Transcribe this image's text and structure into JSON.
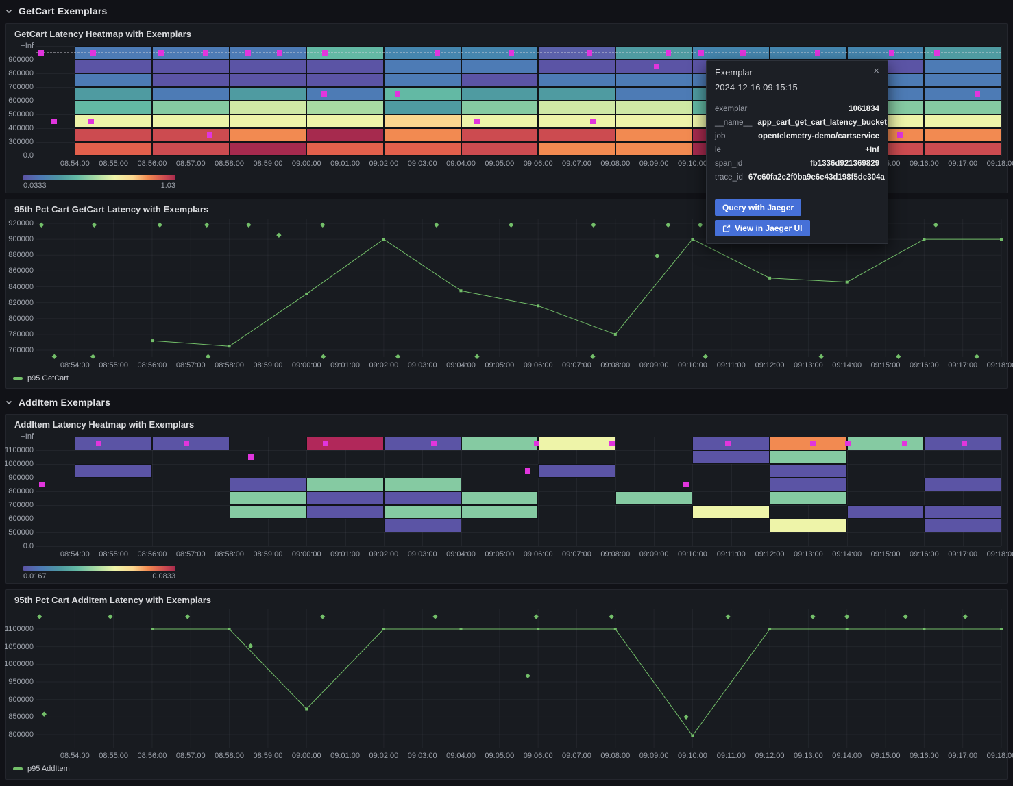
{
  "sections": [
    {
      "title": "GetCart Exemplars"
    },
    {
      "title": "AddItem Exemplars"
    }
  ],
  "time_axis": {
    "start": "08:53:00",
    "span_minutes": 25,
    "labels": [
      "08:54:00",
      "08:55:00",
      "08:56:00",
      "08:57:00",
      "08:58:00",
      "08:59:00",
      "09:00:00",
      "09:01:00",
      "09:02:00",
      "09:03:00",
      "09:04:00",
      "09:05:00",
      "09:06:00",
      "09:07:00",
      "09:08:00",
      "09:09:00",
      "09:10:00",
      "09:11:00",
      "09:12:00",
      "09:13:00",
      "09:14:00",
      "09:15:00",
      "09:16:00",
      "09:17:00",
      "09:18:00"
    ]
  },
  "palette": {
    "B": "#4d7bb5",
    "S": "#4586ae",
    "PB": "#5b61aa",
    "P": "#5b54a5",
    "T": "#4f9ba1",
    "SG": "#63b9a4",
    "G": "#85caa2",
    "LG": "#a9dba3",
    "PG": "#cfe9a5",
    "Y": "#eef4a9",
    "PC": "#fbd78f",
    "O": "#f28a51",
    "OR": "#e2604c",
    "R": "#cc4b50",
    "DR": "#a62a4e",
    "CR": "#b1285a"
  },
  "exemplar_color": "#e135dd",
  "series_color": "#73bf69",
  "heatmaps": [
    {
      "title": "GetCart Latency Heatmap with Exemplars",
      "y_labels": [
        "+Inf",
        "900000",
        "800000",
        "700000",
        "600000",
        "500000",
        "400000",
        "300000",
        "0.0"
      ],
      "scale_min": "0.0333",
      "scale_max": "1.03",
      "cells": [
        [
          "B",
          "B",
          "B",
          "SG",
          "S",
          "S",
          "PB",
          "T",
          "S",
          "S",
          "S",
          "T"
        ],
        [
          "P",
          "P",
          "P",
          "P",
          "B",
          "B",
          "P",
          "P",
          "P",
          "P",
          "P",
          "B"
        ],
        [
          "B",
          "P",
          "P",
          "P",
          "B",
          "P",
          "B",
          "B",
          "B",
          "B",
          "B",
          "B"
        ],
        [
          "T",
          "B",
          "T",
          "B",
          "SG",
          "T",
          "T",
          "B",
          "T",
          "B",
          "B",
          "B"
        ],
        [
          "SG",
          "G",
          "PG",
          "LG",
          "T",
          "G",
          "PG",
          "PG",
          "SG",
          "G",
          "G",
          "G"
        ],
        [
          "Y",
          "Y",
          "Y",
          "Y",
          "PC",
          "Y",
          "Y",
          "Y",
          "Y",
          "Y",
          "Y",
          "Y"
        ],
        [
          "R",
          "R",
          "O",
          "DR",
          "O",
          "R",
          "R",
          "O",
          "DR",
          "R",
          "O",
          "O"
        ],
        [
          "OR",
          "R",
          "DR",
          "OR",
          "OR",
          "R",
          "O",
          "O",
          "DR",
          "R",
          "R",
          "R"
        ]
      ],
      "exemplars": [
        [
          "08:53:07",
          0
        ],
        [
          "08:54:28",
          0
        ],
        [
          "08:56:14",
          0
        ],
        [
          "08:57:23",
          0
        ],
        [
          "08:58:29",
          0
        ],
        [
          "08:59:18",
          0
        ],
        [
          "09:00:28",
          0
        ],
        [
          "09:03:23",
          0
        ],
        [
          "09:05:18",
          0
        ],
        [
          "09:07:20",
          0
        ],
        [
          "09:09:22",
          0
        ],
        [
          "09:10:13",
          0
        ],
        [
          "09:11:18",
          0
        ],
        [
          "09:13:15",
          0
        ],
        [
          "09:15:10",
          0
        ],
        [
          "09:16:20",
          0
        ],
        [
          "08:53:28",
          5
        ],
        [
          "08:54:25",
          5
        ],
        [
          "08:57:30",
          6
        ],
        [
          "09:00:27",
          3
        ],
        [
          "09:02:21",
          3
        ],
        [
          "09:04:25",
          5
        ],
        [
          "09:07:25",
          5
        ],
        [
          "09:09:04",
          1
        ],
        [
          "09:15:22",
          6
        ],
        [
          "09:17:23",
          3
        ]
      ]
    },
    {
      "title": "AddItem Latency Heatmap with Exemplars",
      "y_labels": [
        "+Inf",
        "1100000",
        "1000000",
        "900000",
        "800000",
        "700000",
        "600000",
        "500000",
        "0.0"
      ],
      "scale_min": "0.0167",
      "scale_max": "0.0833",
      "cells": [
        [
          "P",
          "P",
          "",
          "CR",
          "P",
          "G",
          "Y",
          "",
          "P",
          "O",
          "G",
          "P"
        ],
        [
          "",
          "",
          "",
          "",
          "",
          "",
          "",
          "",
          "P",
          "G",
          "",
          ""
        ],
        [
          "P",
          "",
          "",
          "",
          "",
          "",
          "P",
          "",
          "",
          "P",
          "",
          ""
        ],
        [
          "",
          "",
          "P",
          "G",
          "G",
          "",
          "",
          "",
          "",
          "P",
          "",
          "P"
        ],
        [
          "",
          "",
          "G",
          "P",
          "P",
          "G",
          "",
          "G",
          "",
          "G",
          "",
          ""
        ],
        [
          "",
          "",
          "G",
          "P",
          "G",
          "G",
          "",
          "",
          "Y",
          "",
          "P",
          "P"
        ],
        [
          "",
          "",
          "",
          "",
          "P",
          "",
          "",
          "",
          "",
          "Y",
          "",
          "P"
        ],
        [
          "",
          "",
          "",
          "",
          "",
          "",
          "",
          "",
          "",
          "",
          "",
          ""
        ]
      ],
      "exemplars": [
        [
          "08:54:37",
          0
        ],
        [
          "08:56:53",
          0
        ],
        [
          "09:00:30",
          0
        ],
        [
          "09:03:18",
          0
        ],
        [
          "09:05:58",
          0
        ],
        [
          "09:07:55",
          0
        ],
        [
          "09:10:55",
          0
        ],
        [
          "09:13:07",
          0
        ],
        [
          "09:14:01",
          0
        ],
        [
          "09:15:30",
          0
        ],
        [
          "09:17:03",
          0
        ],
        [
          "08:58:33",
          1
        ],
        [
          "09:05:44",
          2
        ],
        [
          "08:53:08",
          3
        ],
        [
          "09:09:50",
          3
        ]
      ]
    }
  ],
  "line_charts": [
    {
      "title": "95th Pct Cart GetCart Latency with Exemplars",
      "legend": "p95 GetCart",
      "y_ticks": [
        "920000",
        "900000",
        "880000",
        "860000",
        "840000",
        "820000",
        "800000",
        "780000",
        "760000"
      ],
      "points": [
        [
          "08:56:00",
          772000
        ],
        [
          "08:58:00",
          765000
        ],
        [
          "09:00:00",
          831000
        ],
        [
          "09:02:00",
          900000
        ],
        [
          "09:04:00",
          835000
        ],
        [
          "09:06:00",
          816000
        ],
        [
          "09:08:00",
          780000
        ],
        [
          "09:10:00",
          900000
        ],
        [
          "09:12:00",
          851000
        ],
        [
          "09:14:00",
          846000
        ],
        [
          "09:16:00",
          900000
        ],
        [
          "09:18:00",
          900000
        ]
      ],
      "exemplars": [
        [
          "08:53:08",
          918000
        ],
        [
          "08:54:30",
          918000
        ],
        [
          "08:56:12",
          918000
        ],
        [
          "08:57:25",
          918000
        ],
        [
          "08:58:30",
          918000
        ],
        [
          "09:00:25",
          918000
        ],
        [
          "09:03:22",
          918000
        ],
        [
          "09:05:18",
          918000
        ],
        [
          "09:07:26",
          918000
        ],
        [
          "09:09:22",
          918000
        ],
        [
          "09:10:12",
          918000
        ],
        [
          "09:16:18",
          918000
        ],
        [
          "08:59:17",
          905000
        ],
        [
          "09:09:05",
          879000
        ],
        [
          "08:53:28",
          752000
        ],
        [
          "08:54:28",
          752000
        ],
        [
          "08:57:27",
          752000
        ],
        [
          "09:00:26",
          752000
        ],
        [
          "09:02:22",
          752000
        ],
        [
          "09:04:25",
          752000
        ],
        [
          "09:07:25",
          752000
        ],
        [
          "09:10:20",
          752000
        ],
        [
          "09:13:20",
          752000
        ],
        [
          "09:15:20",
          752000
        ],
        [
          "09:17:22",
          752000
        ]
      ]
    },
    {
      "title": "95th Pct Cart AddItem Latency with Exemplars",
      "legend": "p95 AddItem",
      "y_ticks": [
        "1100000",
        "1050000",
        "1000000",
        "950000",
        "900000",
        "850000",
        "800000"
      ],
      "points": [
        [
          "08:56:00",
          1100000
        ],
        [
          "08:58:00",
          1100000
        ],
        [
          "09:00:00",
          873000
        ],
        [
          "09:02:00",
          1100000
        ],
        [
          "09:04:00",
          1100000
        ],
        [
          "09:06:00",
          1100000
        ],
        [
          "09:08:00",
          1100000
        ],
        [
          "09:10:00",
          797000
        ],
        [
          "09:12:00",
          1100000
        ],
        [
          "09:14:00",
          1100000
        ],
        [
          "09:16:00",
          1100000
        ],
        [
          "09:18:00",
          1100000
        ]
      ],
      "exemplars": [
        [
          "08:53:05",
          1135000
        ],
        [
          "08:54:55",
          1135000
        ],
        [
          "08:56:55",
          1135000
        ],
        [
          "09:00:25",
          1135000
        ],
        [
          "09:03:20",
          1135000
        ],
        [
          "09:05:57",
          1135000
        ],
        [
          "09:07:54",
          1135000
        ],
        [
          "09:10:55",
          1135000
        ],
        [
          "09:13:07",
          1135000
        ],
        [
          "09:14:00",
          1135000
        ],
        [
          "09:15:31",
          1135000
        ],
        [
          "09:17:04",
          1135000
        ],
        [
          "08:53:12",
          858000
        ],
        [
          "08:58:33",
          1052000
        ],
        [
          "09:05:44",
          967000
        ],
        [
          "09:09:50",
          850000
        ]
      ]
    }
  ],
  "chart_data": [
    {
      "type": "heatmap",
      "title": "GetCart Latency Heatmap with Exemplars",
      "x_range": [
        "08:53:00",
        "09:18:00"
      ],
      "y_buckets": [
        "0.0",
        "300000",
        "400000",
        "500000",
        "600000",
        "700000",
        "800000",
        "900000",
        "+Inf"
      ],
      "color_scale": {
        "min": 0.0333,
        "max": 1.03
      }
    },
    {
      "type": "line",
      "title": "95th Pct Cart GetCart Latency with Exemplars",
      "series": [
        {
          "name": "p95 GetCart",
          "x": [
            "08:56",
            "08:58",
            "09:00",
            "09:02",
            "09:04",
            "09:06",
            "09:08",
            "09:10",
            "09:12",
            "09:14",
            "09:16",
            "09:18"
          ],
          "values": [
            772000,
            765000,
            831000,
            900000,
            835000,
            816000,
            780000,
            900000,
            851000,
            846000,
            900000,
            900000
          ]
        }
      ],
      "ylim": [
        760000,
        920000
      ],
      "legend_position": "bottom-left"
    },
    {
      "type": "heatmap",
      "title": "AddItem Latency Heatmap with Exemplars",
      "x_range": [
        "08:53:00",
        "09:18:00"
      ],
      "y_buckets": [
        "0.0",
        "500000",
        "600000",
        "700000",
        "800000",
        "900000",
        "1000000",
        "1100000",
        "+Inf"
      ],
      "color_scale": {
        "min": 0.0167,
        "max": 0.0833
      }
    },
    {
      "type": "line",
      "title": "95th Pct Cart AddItem Latency with Exemplars",
      "series": [
        {
          "name": "p95 AddItem",
          "x": [
            "08:56",
            "08:58",
            "09:00",
            "09:02",
            "09:04",
            "09:06",
            "09:08",
            "09:10",
            "09:12",
            "09:14",
            "09:16",
            "09:18"
          ],
          "values": [
            1100000,
            1100000,
            873000,
            1100000,
            1100000,
            1100000,
            1100000,
            797000,
            1100000,
            1100000,
            1100000,
            1100000
          ]
        }
      ],
      "ylim": [
        800000,
        1100000
      ],
      "legend_position": "bottom-left"
    }
  ],
  "tooltip": {
    "title": "Exemplar",
    "close_label": "×",
    "timestamp": "2024-12-16 09:15:15",
    "fields": [
      {
        "label": "exemplar",
        "value": "1061834"
      },
      {
        "label": "__name__",
        "value": "app_cart_get_cart_latency_bucket"
      },
      {
        "label": "job",
        "value": "opentelemetry-demo/cartservice"
      },
      {
        "label": "le",
        "value": "+Inf"
      },
      {
        "label": "span_id",
        "value": "fb1336d921369829"
      },
      {
        "label": "trace_id",
        "value": "67c60fa2e2f0ba9e6e43d198f5de304a"
      }
    ],
    "buttons": [
      {
        "label": "Query with Jaeger"
      },
      {
        "label": "View in Jaeger UI"
      }
    ]
  }
}
